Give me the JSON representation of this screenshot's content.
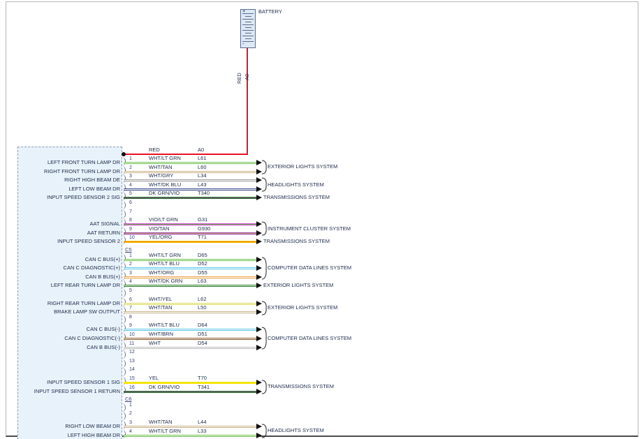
{
  "battery": {
    "label": "BATTERY",
    "plus": "+",
    "minus": "-"
  },
  "feed": {
    "color": "RED",
    "circuit": "A0"
  },
  "palette": {
    "RED": [
      "#e81123"
    ],
    "WHT/LT GRN": [
      "#6abf4b",
      "#ffffff",
      "#6abf4b"
    ],
    "WHT/TAN": [
      "#c9b188",
      "#ffffff",
      "#c9b188"
    ],
    "WHT/GRY": [
      "#9a9a9a",
      "#ffffff",
      "#9a9a9a"
    ],
    "WHT/DK BLU": [
      "#3a4a8c",
      "#ffffff",
      "#3a4a8c"
    ],
    "DK GRN/VIO": [
      "#1e7a1e",
      "#8a4a9a",
      "#1e7a1e"
    ],
    "VIO/LT GRN": [
      "#cc44cc",
      "#6abf4b",
      "#cc44cc"
    ],
    "VIO/TAN": [
      "#9a3a9a",
      "#c9b188",
      "#9a3a9a"
    ],
    "YEL/ORG": [
      "#f5c400",
      "#f08300",
      "#f5c400"
    ],
    "WHT/LT BLU": [
      "#5bc8e8",
      "#ffffff",
      "#5bc8e8"
    ],
    "WHT/ORG": [
      "#e8a04a",
      "#ffffff",
      "#e8a04a"
    ],
    "WHT/DK GRN": [
      "#1e7a1e",
      "#ffffff",
      "#1e7a1e"
    ],
    "WHT/YEL": [
      "#d9d955",
      "#ffffff",
      "#d9d955"
    ],
    "WHT/BRN": [
      "#8a5a2a",
      "#ffffff",
      "#8a5a2a"
    ],
    "WHT": [
      "#bbbbbb",
      "#ffffff",
      "#bbbbbb"
    ],
    "YEL": [
      "#f5e400"
    ]
  },
  "module": {
    "sections": [
      {
        "label": "",
        "pins": [
          {
            "pin": "1",
            "label": "LEFT FRONT TURN LAMP DR",
            "wire": "WHT/LT GRN",
            "circuit": "L61",
            "group": "ext1"
          },
          {
            "pin": "2",
            "label": "RIGHT FRONT TURN LAMP DR",
            "wire": "WHT/TAN",
            "circuit": "L60",
            "group": "ext1"
          },
          {
            "pin": "3",
            "label": "RIGHT HIGH BEAM DE",
            "wire": "WHT/GRY",
            "circuit": "L34",
            "group": "head1"
          },
          {
            "pin": "4",
            "label": "LEFT LOW BEAM DR",
            "wire": "WHT/DK BLU",
            "circuit": "L43",
            "group": "head1"
          },
          {
            "pin": "5",
            "label": "INPUT SPEED SENSOR 2 SIG",
            "wire": "DK GRN/VIO",
            "circuit": "T340",
            "group": "trans1"
          },
          {
            "pin": "6"
          },
          {
            "pin": "7"
          },
          {
            "pin": "8",
            "label": "AAT SIGNAL",
            "wire": "VIO/LT GRN",
            "circuit": "G31",
            "group": "ic1"
          },
          {
            "pin": "9",
            "label": "AAT RETURN",
            "wire": "VIO/TAN",
            "circuit": "G930",
            "group": "ic1"
          },
          {
            "pin": "10",
            "label": "INPUT SPEED SENSOR 2",
            "wire": "YEL/ORG",
            "circuit": "T71",
            "group": "trans2"
          }
        ]
      },
      {
        "label": "C5",
        "pins": [
          {
            "pin": "1",
            "label": "CAN C BUS(+)",
            "wire": "WHT/LT GRN",
            "circuit": "D65",
            "group": "cdl1"
          },
          {
            "pin": "2",
            "label": "CAN C DIAGNOSTIC(+)",
            "wire": "WHT/LT BLU",
            "circuit": "D52",
            "group": "cdl1"
          },
          {
            "pin": "3",
            "label": "CAN B BUS(+)",
            "wire": "WHT/ORG",
            "circuit": "D55",
            "group": "cdl1"
          },
          {
            "pin": "4",
            "label": "LEFT REAR TURN LAMP DR",
            "wire": "WHT/DK GRN",
            "circuit": "L63",
            "group": "ext2"
          },
          {
            "pin": "5"
          },
          {
            "pin": "6",
            "label": "RIGHT REAR TURN LAMP DR",
            "wire": "WHT/YEL",
            "circuit": "L62",
            "group": "ext3"
          },
          {
            "pin": "7",
            "label": "BRAKE LAMP SW OUTPUT",
            "wire": "WHT/TAN",
            "circuit": "L50",
            "group": "ext3"
          },
          {
            "pin": "8"
          },
          {
            "pin": "9",
            "label": "CAN C BUS(-)",
            "wire": "WHT/LT BLU",
            "circuit": "D64",
            "group": "cdl2"
          },
          {
            "pin": "10",
            "label": "CAN C DIAGNOSTIC(-)",
            "wire": "WHT/BRN",
            "circuit": "D51",
            "group": "cdl2"
          },
          {
            "pin": "11",
            "label": "CAN B BUS(-)",
            "wire": "WHT",
            "circuit": "D54",
            "group": "cdl2"
          },
          {
            "pin": "12"
          },
          {
            "pin": "13"
          },
          {
            "pin": "14"
          },
          {
            "pin": "15",
            "label": "INPUT SPEED SENSOR 1 SIG",
            "wire": "YEL",
            "circuit": "T70",
            "group": "trans3"
          },
          {
            "pin": "16",
            "label": "INPUT SPEED SENSOR 1 RETURN",
            "wire": "DK GRN/VIO",
            "circuit": "T341",
            "group": "trans3"
          }
        ]
      },
      {
        "label": "C6",
        "pins": [
          {
            "pin": "1"
          },
          {
            "pin": "2"
          },
          {
            "pin": "3",
            "label": "RIGHT LOW BEAM DR",
            "wire": "WHT/TAN",
            "circuit": "L44",
            "group": "head2"
          },
          {
            "pin": "4",
            "label": "LEFT HIGH BEAM DR",
            "wire": "WHT/LT GRN",
            "circuit": "L33",
            "group": "head2"
          }
        ]
      }
    ]
  },
  "systems": {
    "ext1": "EXTERIOR LIGHTS SYSTEM",
    "head1": "HEADLIGHTS SYSTEM",
    "trans1": "TRANSMISSIONS SYSTEM",
    "ic1": "INSTRUMENT CLUSTER SYSTEM",
    "trans2": "TRANSMISSIONS SYSTEM",
    "cdl1": "COMPUTER DATA LINES SYSTEM",
    "ext2": "EXTERIOR LIGHTS SYSTEM",
    "ext3": "EXTERIOR LIGHTS SYSTEM",
    "cdl2": "COMPUTER DATA LINES SYSTEM",
    "trans3": "TRANSMISSIONS SYSTEM",
    "head2": "HEADLIGHTS SYSTEM"
  }
}
